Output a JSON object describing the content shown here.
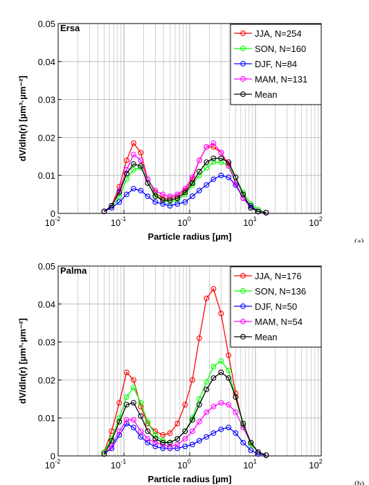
{
  "chart_data": [
    {
      "type": "line",
      "title": "Ersa",
      "panel_label": "(a)",
      "xlabel": "Particle radius [µm]",
      "ylabel": "dV/dln(r) [µm³·µm⁻²]",
      "xscale": "log",
      "xlim": [
        0.01,
        100
      ],
      "ylim": [
        0,
        0.05
      ],
      "xticks": [
        {
          "base": "10",
          "exp": "-2"
        },
        {
          "base": "10",
          "exp": "-1"
        },
        {
          "base": "10",
          "exp": "0"
        },
        {
          "base": "10",
          "exp": "1"
        },
        {
          "base": "10",
          "exp": "2"
        }
      ],
      "yticks": [
        "0",
        "0.01",
        "0.02",
        "0.03",
        "0.04",
        "0.05"
      ],
      "grid": true,
      "legend_position": "top-right",
      "x": [
        0.05,
        0.065,
        0.085,
        0.11,
        0.14,
        0.18,
        0.23,
        0.3,
        0.39,
        0.5,
        0.65,
        0.85,
        1.1,
        1.4,
        1.8,
        2.3,
        3.0,
        3.9,
        5.0,
        6.5,
        8.5,
        11.0,
        14.5
      ],
      "series": [
        {
          "name": "JJA, N=254",
          "color": "#ff0000",
          "values": [
            0.0005,
            0.002,
            0.007,
            0.014,
            0.0185,
            0.016,
            0.009,
            0.0055,
            0.004,
            0.004,
            0.0045,
            0.006,
            0.009,
            0.014,
            0.0175,
            0.0175,
            0.016,
            0.013,
            0.008,
            0.004,
            0.0015,
            0.0005,
            0.0002
          ]
        },
        {
          "name": "SON, N=160",
          "color": "#00ff00",
          "values": [
            0.0005,
            0.0015,
            0.0045,
            0.009,
            0.0115,
            0.012,
            0.009,
            0.005,
            0.0035,
            0.003,
            0.0035,
            0.005,
            0.0075,
            0.01,
            0.012,
            0.0135,
            0.0135,
            0.0125,
            0.0095,
            0.0055,
            0.0025,
            0.001,
            0.0002
          ]
        },
        {
          "name": "DJF, N=84",
          "color": "#0000ff",
          "values": [
            0.0005,
            0.0015,
            0.003,
            0.005,
            0.0065,
            0.006,
            0.0045,
            0.003,
            0.0025,
            0.002,
            0.0025,
            0.003,
            0.0045,
            0.006,
            0.0075,
            0.009,
            0.01,
            0.0095,
            0.0075,
            0.004,
            0.002,
            0.0005,
            0.0002
          ]
        },
        {
          "name": "MAM, N=131",
          "color": "#ff00ff",
          "values": [
            0.0005,
            0.002,
            0.006,
            0.0115,
            0.0155,
            0.014,
            0.009,
            0.006,
            0.005,
            0.0045,
            0.005,
            0.0065,
            0.0095,
            0.014,
            0.0175,
            0.0185,
            0.016,
            0.0125,
            0.008,
            0.004,
            0.0015,
            0.0005,
            0.0002
          ]
        },
        {
          "name": "Mean",
          "color": "#000000",
          "values": [
            0.0005,
            0.002,
            0.0055,
            0.0105,
            0.013,
            0.0125,
            0.008,
            0.0045,
            0.0035,
            0.0035,
            0.004,
            0.0055,
            0.008,
            0.011,
            0.0135,
            0.0145,
            0.0145,
            0.0135,
            0.0095,
            0.005,
            0.0015,
            0.0005,
            0.0002
          ]
        }
      ]
    },
    {
      "type": "line",
      "title": "Palma",
      "panel_label": "(b)",
      "xlabel": "Particle radius [µm]",
      "ylabel": "dV/dln(r) [µm³·µm⁻²]",
      "xscale": "log",
      "xlim": [
        0.01,
        100
      ],
      "ylim": [
        0,
        0.05
      ],
      "xticks": [
        {
          "base": "10",
          "exp": "-2"
        },
        {
          "base": "10",
          "exp": "-1"
        },
        {
          "base": "10",
          "exp": "0"
        },
        {
          "base": "10",
          "exp": "1"
        },
        {
          "base": "10",
          "exp": "2"
        }
      ],
      "yticks": [
        "0",
        "0.01",
        "0.02",
        "0.03",
        "0.04",
        "0.05"
      ],
      "grid": true,
      "legend_position": "top-right",
      "x": [
        0.05,
        0.065,
        0.085,
        0.11,
        0.14,
        0.18,
        0.23,
        0.3,
        0.39,
        0.5,
        0.65,
        0.85,
        1.1,
        1.4,
        1.8,
        2.3,
        3.0,
        3.9,
        5.0,
        6.5,
        8.5,
        11.0,
        14.5
      ],
      "series": [
        {
          "name": "JJA, N=176",
          "color": "#ff0000",
          "values": [
            0.001,
            0.0065,
            0.014,
            0.022,
            0.02,
            0.013,
            0.0085,
            0.0065,
            0.0055,
            0.006,
            0.0085,
            0.0135,
            0.02,
            0.031,
            0.0415,
            0.044,
            0.0375,
            0.0265,
            0.0165,
            0.008,
            0.003,
            0.001,
            0.0002
          ]
        },
        {
          "name": "SON, N=136",
          "color": "#00ff00",
          "values": [
            0.001,
            0.0045,
            0.01,
            0.0155,
            0.018,
            0.014,
            0.009,
            0.0055,
            0.004,
            0.0035,
            0.0045,
            0.0065,
            0.01,
            0.015,
            0.0195,
            0.0235,
            0.025,
            0.0225,
            0.0155,
            0.008,
            0.003,
            0.001,
            0.0002
          ]
        },
        {
          "name": "DJF, N=50",
          "color": "#0000ff",
          "values": [
            0.0005,
            0.002,
            0.0055,
            0.0085,
            0.0075,
            0.005,
            0.0035,
            0.0025,
            0.002,
            0.002,
            0.002,
            0.0025,
            0.003,
            0.004,
            0.005,
            0.006,
            0.007,
            0.0075,
            0.006,
            0.0035,
            0.0015,
            0.0005,
            0.0002
          ]
        },
        {
          "name": "MAM, N=54",
          "color": "#ff00ff",
          "values": [
            0.0005,
            0.0025,
            0.0065,
            0.0095,
            0.0095,
            0.0065,
            0.0045,
            0.0035,
            0.003,
            0.0025,
            0.003,
            0.0045,
            0.0065,
            0.009,
            0.0115,
            0.013,
            0.014,
            0.0135,
            0.0115,
            0.0075,
            0.0035,
            0.001,
            0.0002
          ]
        },
        {
          "name": "Mean",
          "color": "#000000",
          "values": [
            0.0005,
            0.004,
            0.009,
            0.0135,
            0.014,
            0.0105,
            0.0065,
            0.0045,
            0.0035,
            0.0035,
            0.0045,
            0.0065,
            0.0095,
            0.0135,
            0.0175,
            0.0205,
            0.022,
            0.0205,
            0.0155,
            0.0085,
            0.0035,
            0.001,
            0.0002
          ]
        }
      ]
    }
  ]
}
